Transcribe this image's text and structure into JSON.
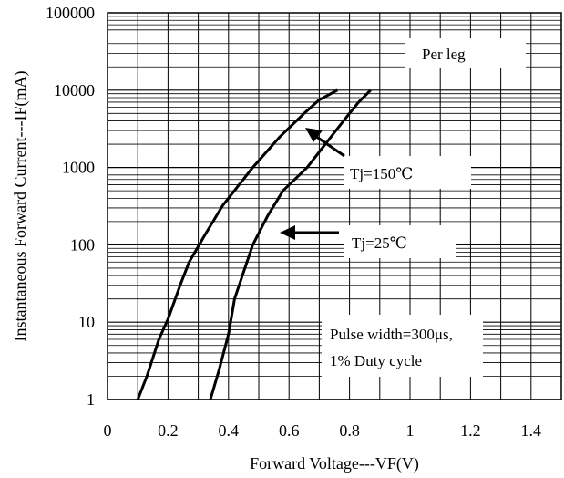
{
  "chart_data": {
    "type": "line",
    "title": "",
    "xlabel": "Forward Voltage---VF(V)",
    "ylabel": "Instantaneous Forward Current---IF(mA)",
    "xlim": [
      0,
      1.5
    ],
    "ylim": [
      1,
      100000
    ],
    "yscale": "log",
    "grid": true,
    "x_ticks": [
      "0",
      "0.2",
      "0.4",
      "0.6",
      "0.8",
      "1",
      "1.2",
      "1.4"
    ],
    "y_ticks": [
      "1",
      "10",
      "100",
      "1000",
      "10000",
      "100000"
    ],
    "series": [
      {
        "name": "Tj=150℃",
        "x": [
          0.1,
          0.13,
          0.17,
          0.2,
          0.24,
          0.27,
          0.32,
          0.38,
          0.48,
          0.57,
          0.65,
          0.7,
          0.76
        ],
        "y": [
          1,
          2,
          6,
          11,
          30,
          60,
          130,
          320,
          1000,
          2500,
          5000,
          7500,
          10000
        ]
      },
      {
        "name": "Tj=25℃",
        "x": [
          0.34,
          0.37,
          0.4,
          0.42,
          0.48,
          0.53,
          0.58,
          0.66,
          0.72,
          0.78,
          0.83,
          0.87
        ],
        "y": [
          1,
          2.5,
          7,
          20,
          100,
          240,
          500,
          1000,
          2000,
          4000,
          7000,
          10000
        ]
      }
    ],
    "annotations": [
      {
        "text": "Per leg"
      },
      {
        "text": "Tj=150℃"
      },
      {
        "text": "Tj=25℃"
      },
      {
        "text": "Pulse width=300μs,"
      },
      {
        "text": "1% Duty cycle"
      }
    ]
  }
}
